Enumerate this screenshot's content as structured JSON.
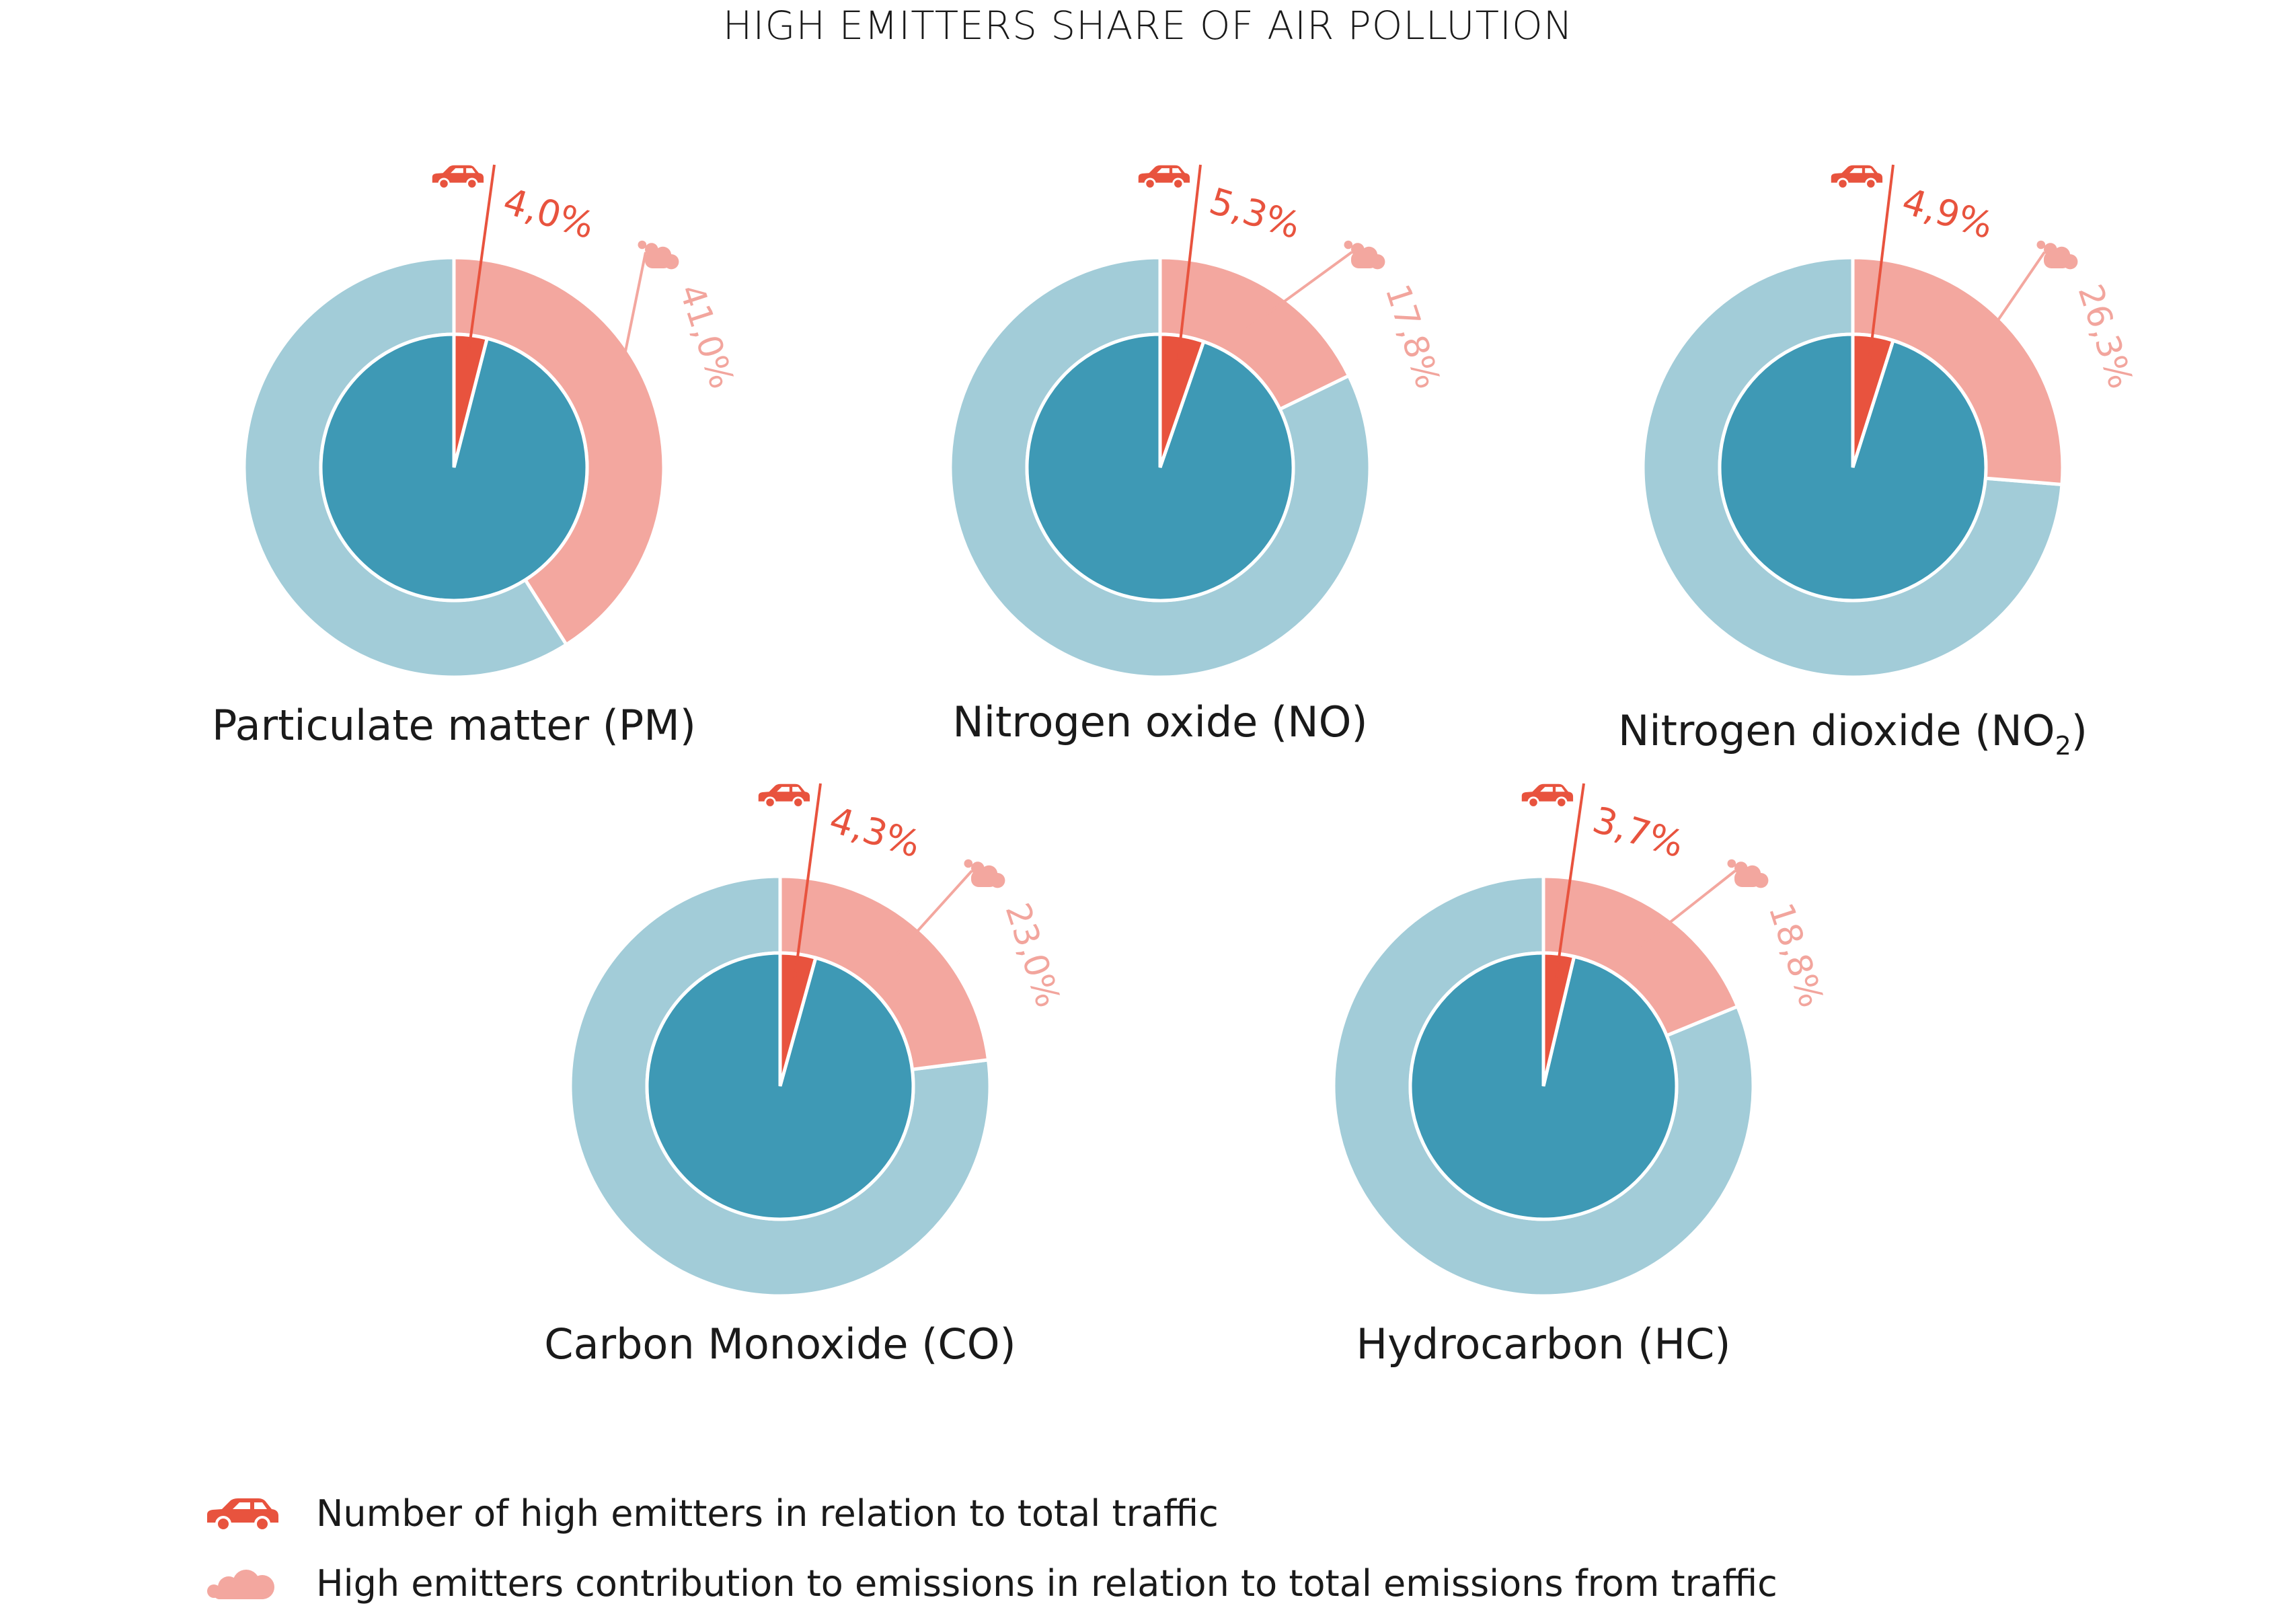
{
  "title": "HIGH EMITTERS SHARE OF AIR POLLUTION",
  "colors": {
    "outer_rest": "#a2ccd8",
    "outer_share": "#f3a79f",
    "inner_rest": "#3e99b5",
    "inner_share": "#e8533e"
  },
  "chart_data": [
    {
      "type": "pie",
      "title": "Particulate matter (PM)",
      "subscript": "",
      "vehicles_share_label": "4,0%",
      "vehicles_share": 4.0,
      "emissions_share_label": "41,0%",
      "emissions_share": 41.0
    },
    {
      "type": "pie",
      "title": "Nitrogen oxide (NO)",
      "subscript": "",
      "vehicles_share_label": "5,3%",
      "vehicles_share": 5.3,
      "emissions_share_label": "17,8%",
      "emissions_share": 17.8
    },
    {
      "type": "pie",
      "title": "Nitrogen dioxide (NO",
      "subscript": "2",
      "title_end": ")",
      "vehicles_share_label": "4,9%",
      "vehicles_share": 4.9,
      "emissions_share_label": "26,3%",
      "emissions_share": 26.3
    },
    {
      "type": "pie",
      "title": "Carbon Monoxide (CO)",
      "subscript": "",
      "vehicles_share_label": "4,3%",
      "vehicles_share": 4.3,
      "emissions_share_label": "23,0%",
      "emissions_share": 23.0
    },
    {
      "type": "pie",
      "title": "Hydrocarbon (HC)",
      "subscript": "",
      "vehicles_share_label": "3,7%",
      "vehicles_share": 3.7,
      "emissions_share_label": "18,8%",
      "emissions_share": 18.8
    }
  ],
  "legend": {
    "vehicles": {
      "icon": "car-icon",
      "text": "Number of high emitters in relation to total traffic"
    },
    "emissions": {
      "icon": "smoke-cloud-icon",
      "text": "High emitters contribution to emissions in relation to total emissions from traffic"
    }
  }
}
